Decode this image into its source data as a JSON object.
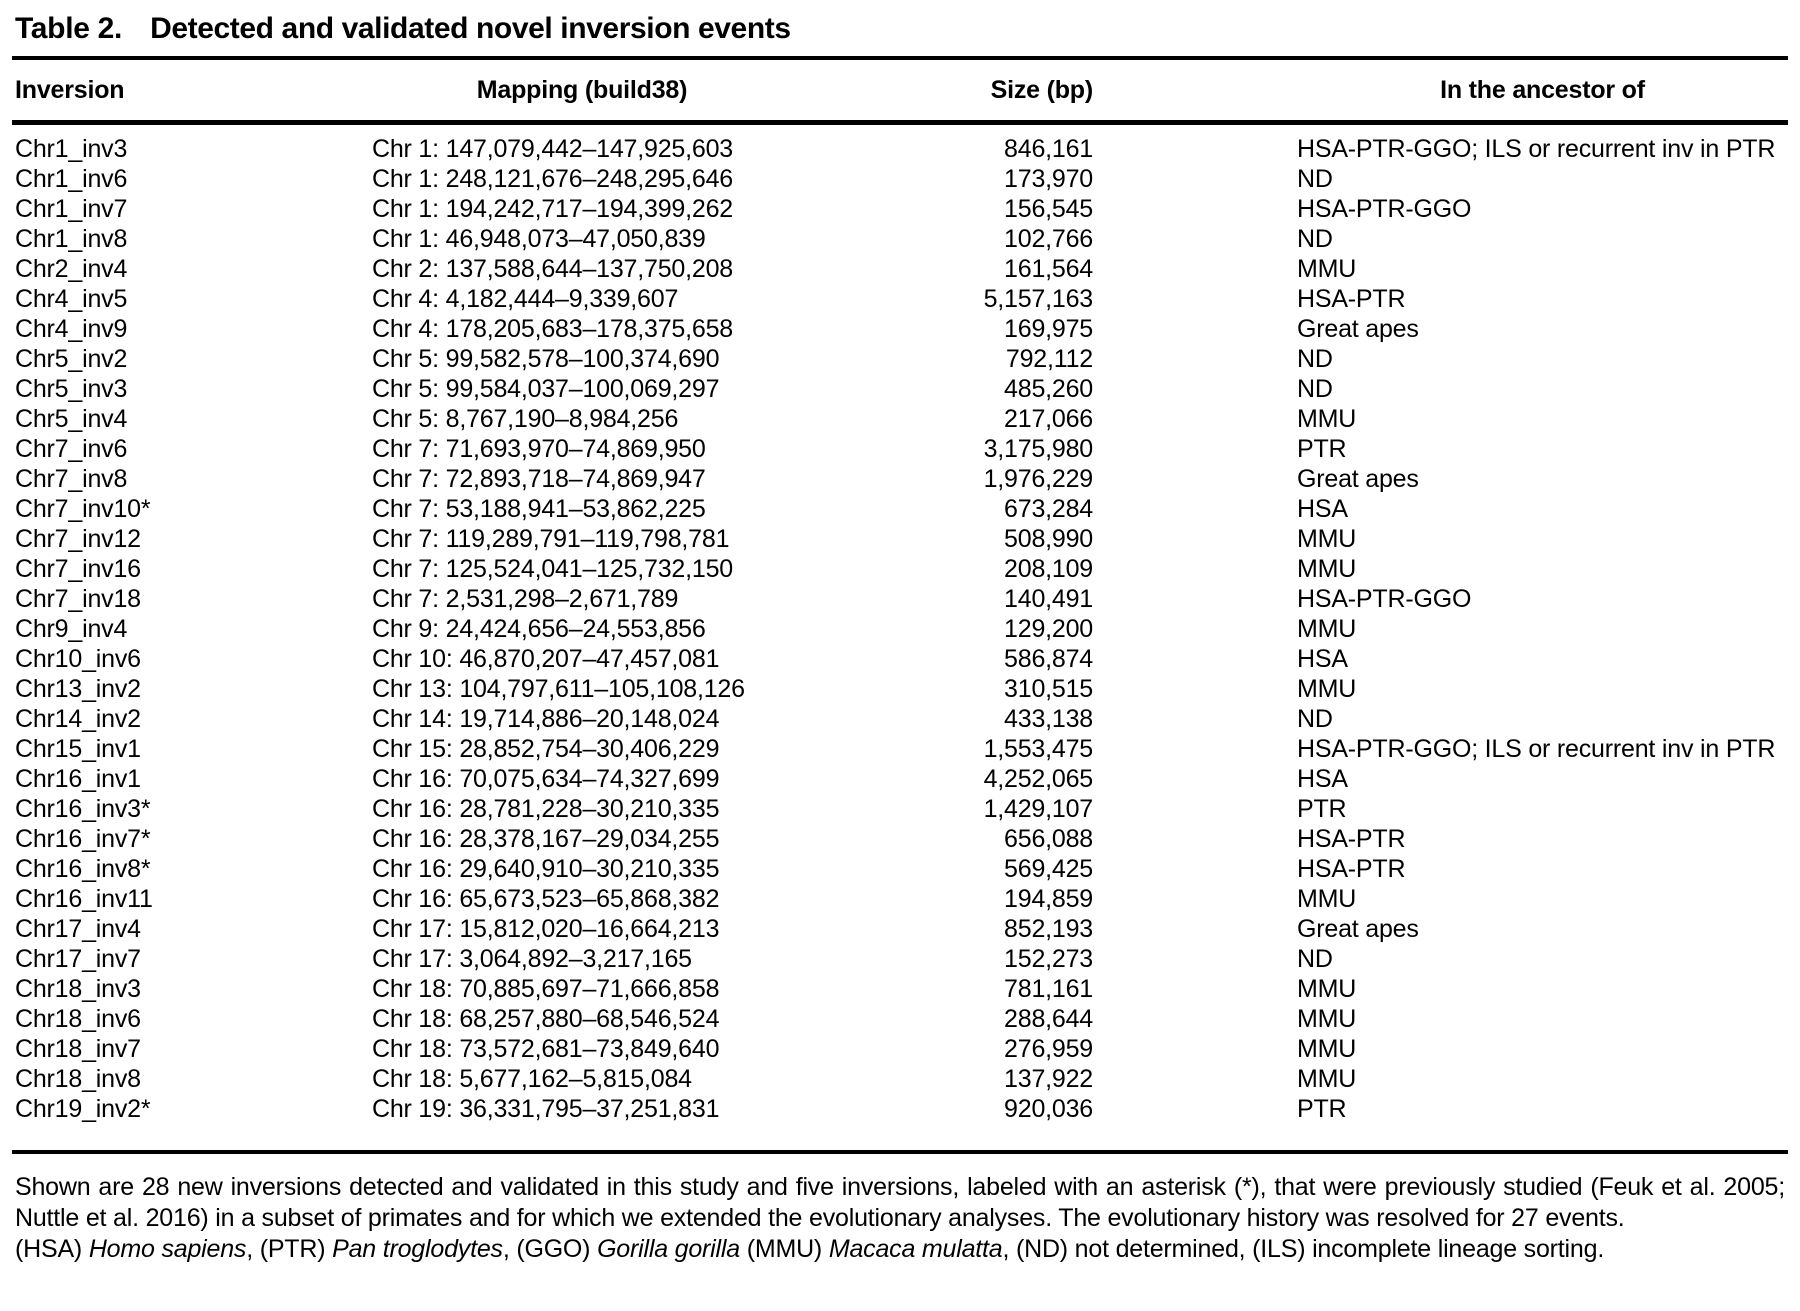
{
  "title": {
    "label": "Table 2.",
    "text": "Detected and validated novel inversion events"
  },
  "table": {
    "columns": [
      "Inversion",
      "Mapping (build38)",
      "Size (bp)",
      "In the ancestor of"
    ],
    "rows": [
      {
        "inversion": "Chr1_inv3",
        "mapping": "Chr 1: 147,079,442–147,925,603",
        "size": "846,161",
        "ancestor": "HSA-PTR-GGO; ILS or recurrent inv in PTR"
      },
      {
        "inversion": "Chr1_inv6",
        "mapping": "Chr 1: 248,121,676–248,295,646",
        "size": "173,970",
        "ancestor": "ND"
      },
      {
        "inversion": "Chr1_inv7",
        "mapping": "Chr 1: 194,242,717–194,399,262",
        "size": "156,545",
        "ancestor": "HSA-PTR-GGO"
      },
      {
        "inversion": "Chr1_inv8",
        "mapping": "Chr 1: 46,948,073–47,050,839",
        "size": "102,766",
        "ancestor": "ND"
      },
      {
        "inversion": "Chr2_inv4",
        "mapping": "Chr 2: 137,588,644–137,750,208",
        "size": "161,564",
        "ancestor": "MMU"
      },
      {
        "inversion": "Chr4_inv5",
        "mapping": "Chr 4: 4,182,444–9,339,607",
        "size": "5,157,163",
        "ancestor": "HSA-PTR"
      },
      {
        "inversion": "Chr4_inv9",
        "mapping": "Chr 4: 178,205,683–178,375,658",
        "size": "169,975",
        "ancestor": "Great apes"
      },
      {
        "inversion": "Chr5_inv2",
        "mapping": "Chr 5: 99,582,578–100,374,690",
        "size": "792,112",
        "ancestor": "ND"
      },
      {
        "inversion": "Chr5_inv3",
        "mapping": "Chr 5: 99,584,037–100,069,297",
        "size": "485,260",
        "ancestor": "ND"
      },
      {
        "inversion": "Chr5_inv4",
        "mapping": "Chr 5: 8,767,190–8,984,256",
        "size": "217,066",
        "ancestor": "MMU"
      },
      {
        "inversion": "Chr7_inv6",
        "mapping": "Chr 7: 71,693,970–74,869,950",
        "size": "3,175,980",
        "ancestor": "PTR"
      },
      {
        "inversion": "Chr7_inv8",
        "mapping": "Chr 7: 72,893,718–74,869,947",
        "size": "1,976,229",
        "ancestor": "Great apes"
      },
      {
        "inversion": "Chr7_inv10*",
        "mapping": "Chr 7: 53,188,941–53,862,225",
        "size": "673,284",
        "ancestor": "HSA"
      },
      {
        "inversion": "Chr7_inv12",
        "mapping": "Chr 7: 119,289,791–119,798,781",
        "size": "508,990",
        "ancestor": "MMU"
      },
      {
        "inversion": "Chr7_inv16",
        "mapping": "Chr 7: 125,524,041–125,732,150",
        "size": "208,109",
        "ancestor": "MMU"
      },
      {
        "inversion": "Chr7_inv18",
        "mapping": "Chr 7: 2,531,298–2,671,789",
        "size": "140,491",
        "ancestor": "HSA-PTR-GGO"
      },
      {
        "inversion": "Chr9_inv4",
        "mapping": "Chr 9: 24,424,656–24,553,856",
        "size": "129,200",
        "ancestor": "MMU"
      },
      {
        "inversion": "Chr10_inv6",
        "mapping": "Chr 10: 46,870,207–47,457,081",
        "size": "586,874",
        "ancestor": "HSA"
      },
      {
        "inversion": "Chr13_inv2",
        "mapping": "Chr 13: 104,797,611–105,108,126",
        "size": "310,515",
        "ancestor": "MMU"
      },
      {
        "inversion": "Chr14_inv2",
        "mapping": "Chr 14: 19,714,886–20,148,024",
        "size": "433,138",
        "ancestor": "ND"
      },
      {
        "inversion": "Chr15_inv1",
        "mapping": "Chr 15: 28,852,754–30,406,229",
        "size": "1,553,475",
        "ancestor": "HSA-PTR-GGO; ILS or recurrent inv in PTR"
      },
      {
        "inversion": "Chr16_inv1",
        "mapping": "Chr 16: 70,075,634–74,327,699",
        "size": "4,252,065",
        "ancestor": "HSA"
      },
      {
        "inversion": "Chr16_inv3*",
        "mapping": "Chr 16: 28,781,228–30,210,335",
        "size": "1,429,107",
        "ancestor": "PTR"
      },
      {
        "inversion": "Chr16_inv7*",
        "mapping": "Chr 16: 28,378,167–29,034,255",
        "size": "656,088",
        "ancestor": "HSA-PTR"
      },
      {
        "inversion": "Chr16_inv8*",
        "mapping": "Chr 16: 29,640,910–30,210,335",
        "size": "569,425",
        "ancestor": "HSA-PTR"
      },
      {
        "inversion": "Chr16_inv11",
        "mapping": "Chr 16: 65,673,523–65,868,382",
        "size": "194,859",
        "ancestor": "MMU"
      },
      {
        "inversion": "Chr17_inv4",
        "mapping": "Chr 17: 15,812,020–16,664,213",
        "size": "852,193",
        "ancestor": "Great apes"
      },
      {
        "inversion": "Chr17_inv7",
        "mapping": "Chr 17: 3,064,892–3,217,165",
        "size": "152,273",
        "ancestor": "ND"
      },
      {
        "inversion": "Chr18_inv3",
        "mapping": "Chr 18: 70,885,697–71,666,858",
        "size": "781,161",
        "ancestor": "MMU"
      },
      {
        "inversion": "Chr18_inv6",
        "mapping": "Chr 18: 68,257,880–68,546,524",
        "size": "288,644",
        "ancestor": "MMU"
      },
      {
        "inversion": "Chr18_inv7",
        "mapping": "Chr 18: 73,572,681–73,849,640",
        "size": "276,959",
        "ancestor": "MMU"
      },
      {
        "inversion": "Chr18_inv8",
        "mapping": "Chr 18: 5,677,162–5,815,084",
        "size": "137,922",
        "ancestor": "MMU"
      },
      {
        "inversion": "Chr19_inv2*",
        "mapping": "Chr 19: 36,331,795–37,251,831",
        "size": "920,036",
        "ancestor": "PTR"
      }
    ]
  },
  "notes": {
    "paragraph": "Shown are 28 new inversions detected and validated in this study and five inversions, labeled with an asterisk (*), that were previously studied (Feuk et al. 2005; Nuttle et al. 2016) in a subset of primates and for which we extended the evolutionary analyses. The evolutionary history was resolved for 27 events.",
    "abbreviations": [
      {
        "t": "(HSA) ",
        "i": false
      },
      {
        "t": "Homo sapiens",
        "i": true
      },
      {
        "t": ", (PTR) ",
        "i": false
      },
      {
        "t": "Pan troglodytes",
        "i": true
      },
      {
        "t": ", (GGO) ",
        "i": false
      },
      {
        "t": "Gorilla gorilla",
        "i": true
      },
      {
        "t": " (MMU) ",
        "i": false
      },
      {
        "t": "Macaca mulatta",
        "i": true
      },
      {
        "t": ", (ND) not determined, (ILS) incomplete lineage sorting.",
        "i": false
      }
    ]
  }
}
